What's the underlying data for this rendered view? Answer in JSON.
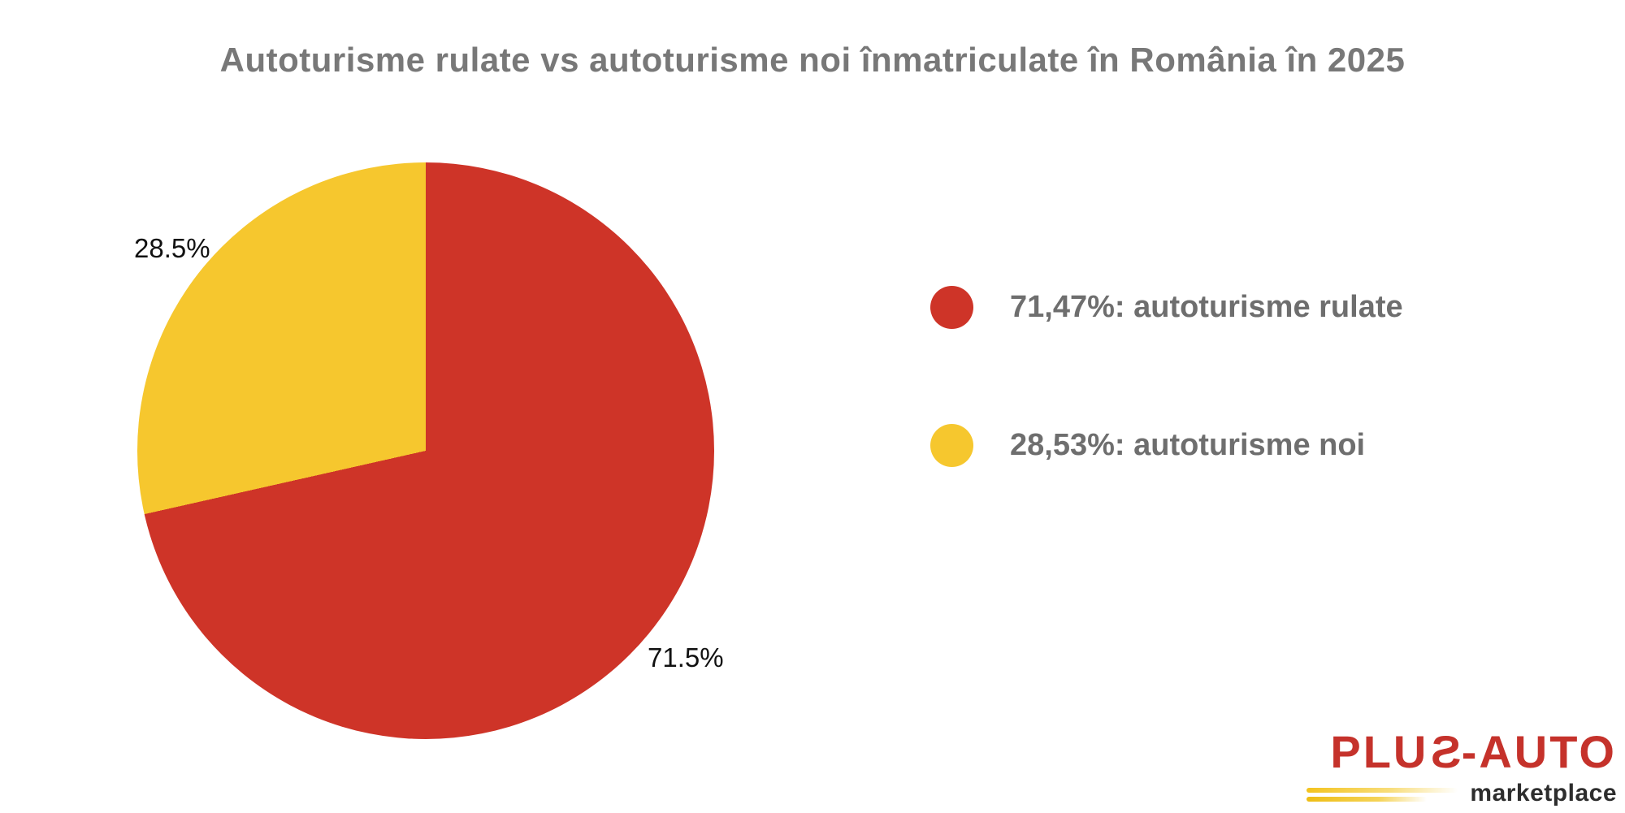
{
  "page": {
    "background_color": "#FFFFFF"
  },
  "chart_data": {
    "type": "pie",
    "title": "Autoturisme rulate vs autoturisme noi înmatriculate în România în 2025",
    "title_color": "#787878",
    "start_angle_deg": 0,
    "direction": "clockwise",
    "legend_position": "right",
    "pie_label_color": "#111111",
    "legend_text_color": "#6E6E6E",
    "slices": [
      {
        "name": "autoturisme rulate",
        "value": 71.47,
        "color": "#CE3428",
        "pie_label": "71.5%",
        "legend_label": "71,47%: autoturisme rulate"
      },
      {
        "name": "autoturisme noi",
        "value": 28.53,
        "color": "#F6C72E",
        "pie_label": "28.5%",
        "legend_label": "28,53%: autoturisme noi"
      }
    ]
  },
  "logo": {
    "text_pre": "PLU",
    "text_s": "S",
    "text_post": "-AUTO",
    "subtitle": "marketplace",
    "brand_color": "#C5322B",
    "subtitle_color": "#2D2D2D",
    "accent_color": "#F3C31E"
  }
}
